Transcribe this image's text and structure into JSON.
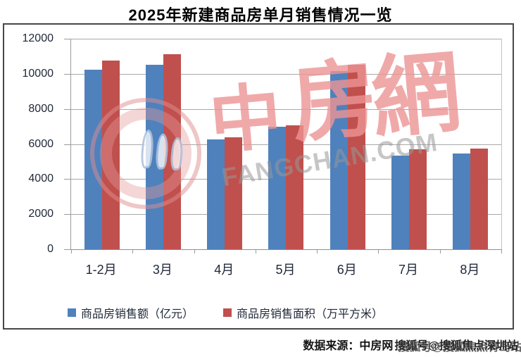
{
  "title": "2025年新建商品房单月销售情况一览",
  "caption": {
    "label": "数据来源：中房网",
    "stamp_overlay_1": "搜狐号@搜狐焦点深圳站",
    "stamp_overlay_2": "搜狐号@搜狐焦点青岛站"
  },
  "watermark": {
    "logo_chars": [
      "中",
      "房",
      "網"
    ],
    "domain_text": "FANGCHAN.COM"
  },
  "colors": {
    "sales_value_blue": "#4F81BD",
    "sales_area_red": "#C0504D",
    "gridline": "#a8a8a8",
    "axis_text": "#1e2738",
    "frame_border": "#474747",
    "watermark_pink": "#EC9494"
  },
  "chart_data": {
    "type": "bar",
    "title": "2025年新建商品房单月销售情况一览",
    "categories": [
      "1-2月",
      "3月",
      "4月",
      "5月",
      "6月",
      "7月",
      "8月"
    ],
    "series": [
      {
        "name": "商品房销售额（亿元）",
        "color": "#4F81BD",
        "values": [
          10250,
          10500,
          6250,
          7000,
          10150,
          5350,
          5450
        ]
      },
      {
        "name": "商品房销售面积（万平方米）",
        "color": "#C0504D",
        "values": [
          10750,
          11100,
          6400,
          7050,
          10500,
          5700,
          5740
        ]
      }
    ],
    "xlabel": "",
    "ylabel": "",
    "ylim": [
      0,
      12000
    ],
    "yticks": [
      0,
      2000,
      4000,
      6000,
      8000,
      10000,
      12000
    ],
    "grid": true,
    "legend_position": "bottom"
  }
}
